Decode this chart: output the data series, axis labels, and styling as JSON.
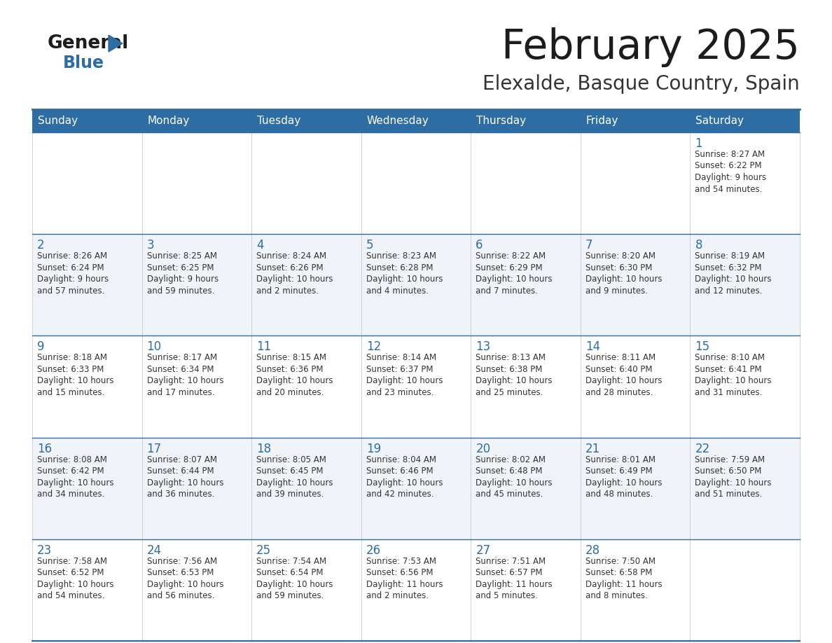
{
  "title": "February 2025",
  "subtitle": "Elexalde, Basque Country, Spain",
  "header_bg": "#2E6DA4",
  "header_text_color": "#FFFFFF",
  "cell_bg_even": "#FFFFFF",
  "cell_bg_odd": "#F0F4F8",
  "day_number_color": "#2E6DA4",
  "text_color": "#333333",
  "border_color": "#B0BEC5",
  "line_color": "#2E6DA4",
  "days_of_week": [
    "Sunday",
    "Monday",
    "Tuesday",
    "Wednesday",
    "Thursday",
    "Friday",
    "Saturday"
  ],
  "weeks": [
    [
      {
        "day": null,
        "info": null
      },
      {
        "day": null,
        "info": null
      },
      {
        "day": null,
        "info": null
      },
      {
        "day": null,
        "info": null
      },
      {
        "day": null,
        "info": null
      },
      {
        "day": null,
        "info": null
      },
      {
        "day": 1,
        "info": "Sunrise: 8:27 AM\nSunset: 6:22 PM\nDaylight: 9 hours\nand 54 minutes."
      }
    ],
    [
      {
        "day": 2,
        "info": "Sunrise: 8:26 AM\nSunset: 6:24 PM\nDaylight: 9 hours\nand 57 minutes."
      },
      {
        "day": 3,
        "info": "Sunrise: 8:25 AM\nSunset: 6:25 PM\nDaylight: 9 hours\nand 59 minutes."
      },
      {
        "day": 4,
        "info": "Sunrise: 8:24 AM\nSunset: 6:26 PM\nDaylight: 10 hours\nand 2 minutes."
      },
      {
        "day": 5,
        "info": "Sunrise: 8:23 AM\nSunset: 6:28 PM\nDaylight: 10 hours\nand 4 minutes."
      },
      {
        "day": 6,
        "info": "Sunrise: 8:22 AM\nSunset: 6:29 PM\nDaylight: 10 hours\nand 7 minutes."
      },
      {
        "day": 7,
        "info": "Sunrise: 8:20 AM\nSunset: 6:30 PM\nDaylight: 10 hours\nand 9 minutes."
      },
      {
        "day": 8,
        "info": "Sunrise: 8:19 AM\nSunset: 6:32 PM\nDaylight: 10 hours\nand 12 minutes."
      }
    ],
    [
      {
        "day": 9,
        "info": "Sunrise: 8:18 AM\nSunset: 6:33 PM\nDaylight: 10 hours\nand 15 minutes."
      },
      {
        "day": 10,
        "info": "Sunrise: 8:17 AM\nSunset: 6:34 PM\nDaylight: 10 hours\nand 17 minutes."
      },
      {
        "day": 11,
        "info": "Sunrise: 8:15 AM\nSunset: 6:36 PM\nDaylight: 10 hours\nand 20 minutes."
      },
      {
        "day": 12,
        "info": "Sunrise: 8:14 AM\nSunset: 6:37 PM\nDaylight: 10 hours\nand 23 minutes."
      },
      {
        "day": 13,
        "info": "Sunrise: 8:13 AM\nSunset: 6:38 PM\nDaylight: 10 hours\nand 25 minutes."
      },
      {
        "day": 14,
        "info": "Sunrise: 8:11 AM\nSunset: 6:40 PM\nDaylight: 10 hours\nand 28 minutes."
      },
      {
        "day": 15,
        "info": "Sunrise: 8:10 AM\nSunset: 6:41 PM\nDaylight: 10 hours\nand 31 minutes."
      }
    ],
    [
      {
        "day": 16,
        "info": "Sunrise: 8:08 AM\nSunset: 6:42 PM\nDaylight: 10 hours\nand 34 minutes."
      },
      {
        "day": 17,
        "info": "Sunrise: 8:07 AM\nSunset: 6:44 PM\nDaylight: 10 hours\nand 36 minutes."
      },
      {
        "day": 18,
        "info": "Sunrise: 8:05 AM\nSunset: 6:45 PM\nDaylight: 10 hours\nand 39 minutes."
      },
      {
        "day": 19,
        "info": "Sunrise: 8:04 AM\nSunset: 6:46 PM\nDaylight: 10 hours\nand 42 minutes."
      },
      {
        "day": 20,
        "info": "Sunrise: 8:02 AM\nSunset: 6:48 PM\nDaylight: 10 hours\nand 45 minutes."
      },
      {
        "day": 21,
        "info": "Sunrise: 8:01 AM\nSunset: 6:49 PM\nDaylight: 10 hours\nand 48 minutes."
      },
      {
        "day": 22,
        "info": "Sunrise: 7:59 AM\nSunset: 6:50 PM\nDaylight: 10 hours\nand 51 minutes."
      }
    ],
    [
      {
        "day": 23,
        "info": "Sunrise: 7:58 AM\nSunset: 6:52 PM\nDaylight: 10 hours\nand 54 minutes."
      },
      {
        "day": 24,
        "info": "Sunrise: 7:56 AM\nSunset: 6:53 PM\nDaylight: 10 hours\nand 56 minutes."
      },
      {
        "day": 25,
        "info": "Sunrise: 7:54 AM\nSunset: 6:54 PM\nDaylight: 10 hours\nand 59 minutes."
      },
      {
        "day": 26,
        "info": "Sunrise: 7:53 AM\nSunset: 6:56 PM\nDaylight: 11 hours\nand 2 minutes."
      },
      {
        "day": 27,
        "info": "Sunrise: 7:51 AM\nSunset: 6:57 PM\nDaylight: 11 hours\nand 5 minutes."
      },
      {
        "day": 28,
        "info": "Sunrise: 7:50 AM\nSunset: 6:58 PM\nDaylight: 11 hours\nand 8 minutes."
      },
      {
        "day": null,
        "info": null
      }
    ]
  ]
}
